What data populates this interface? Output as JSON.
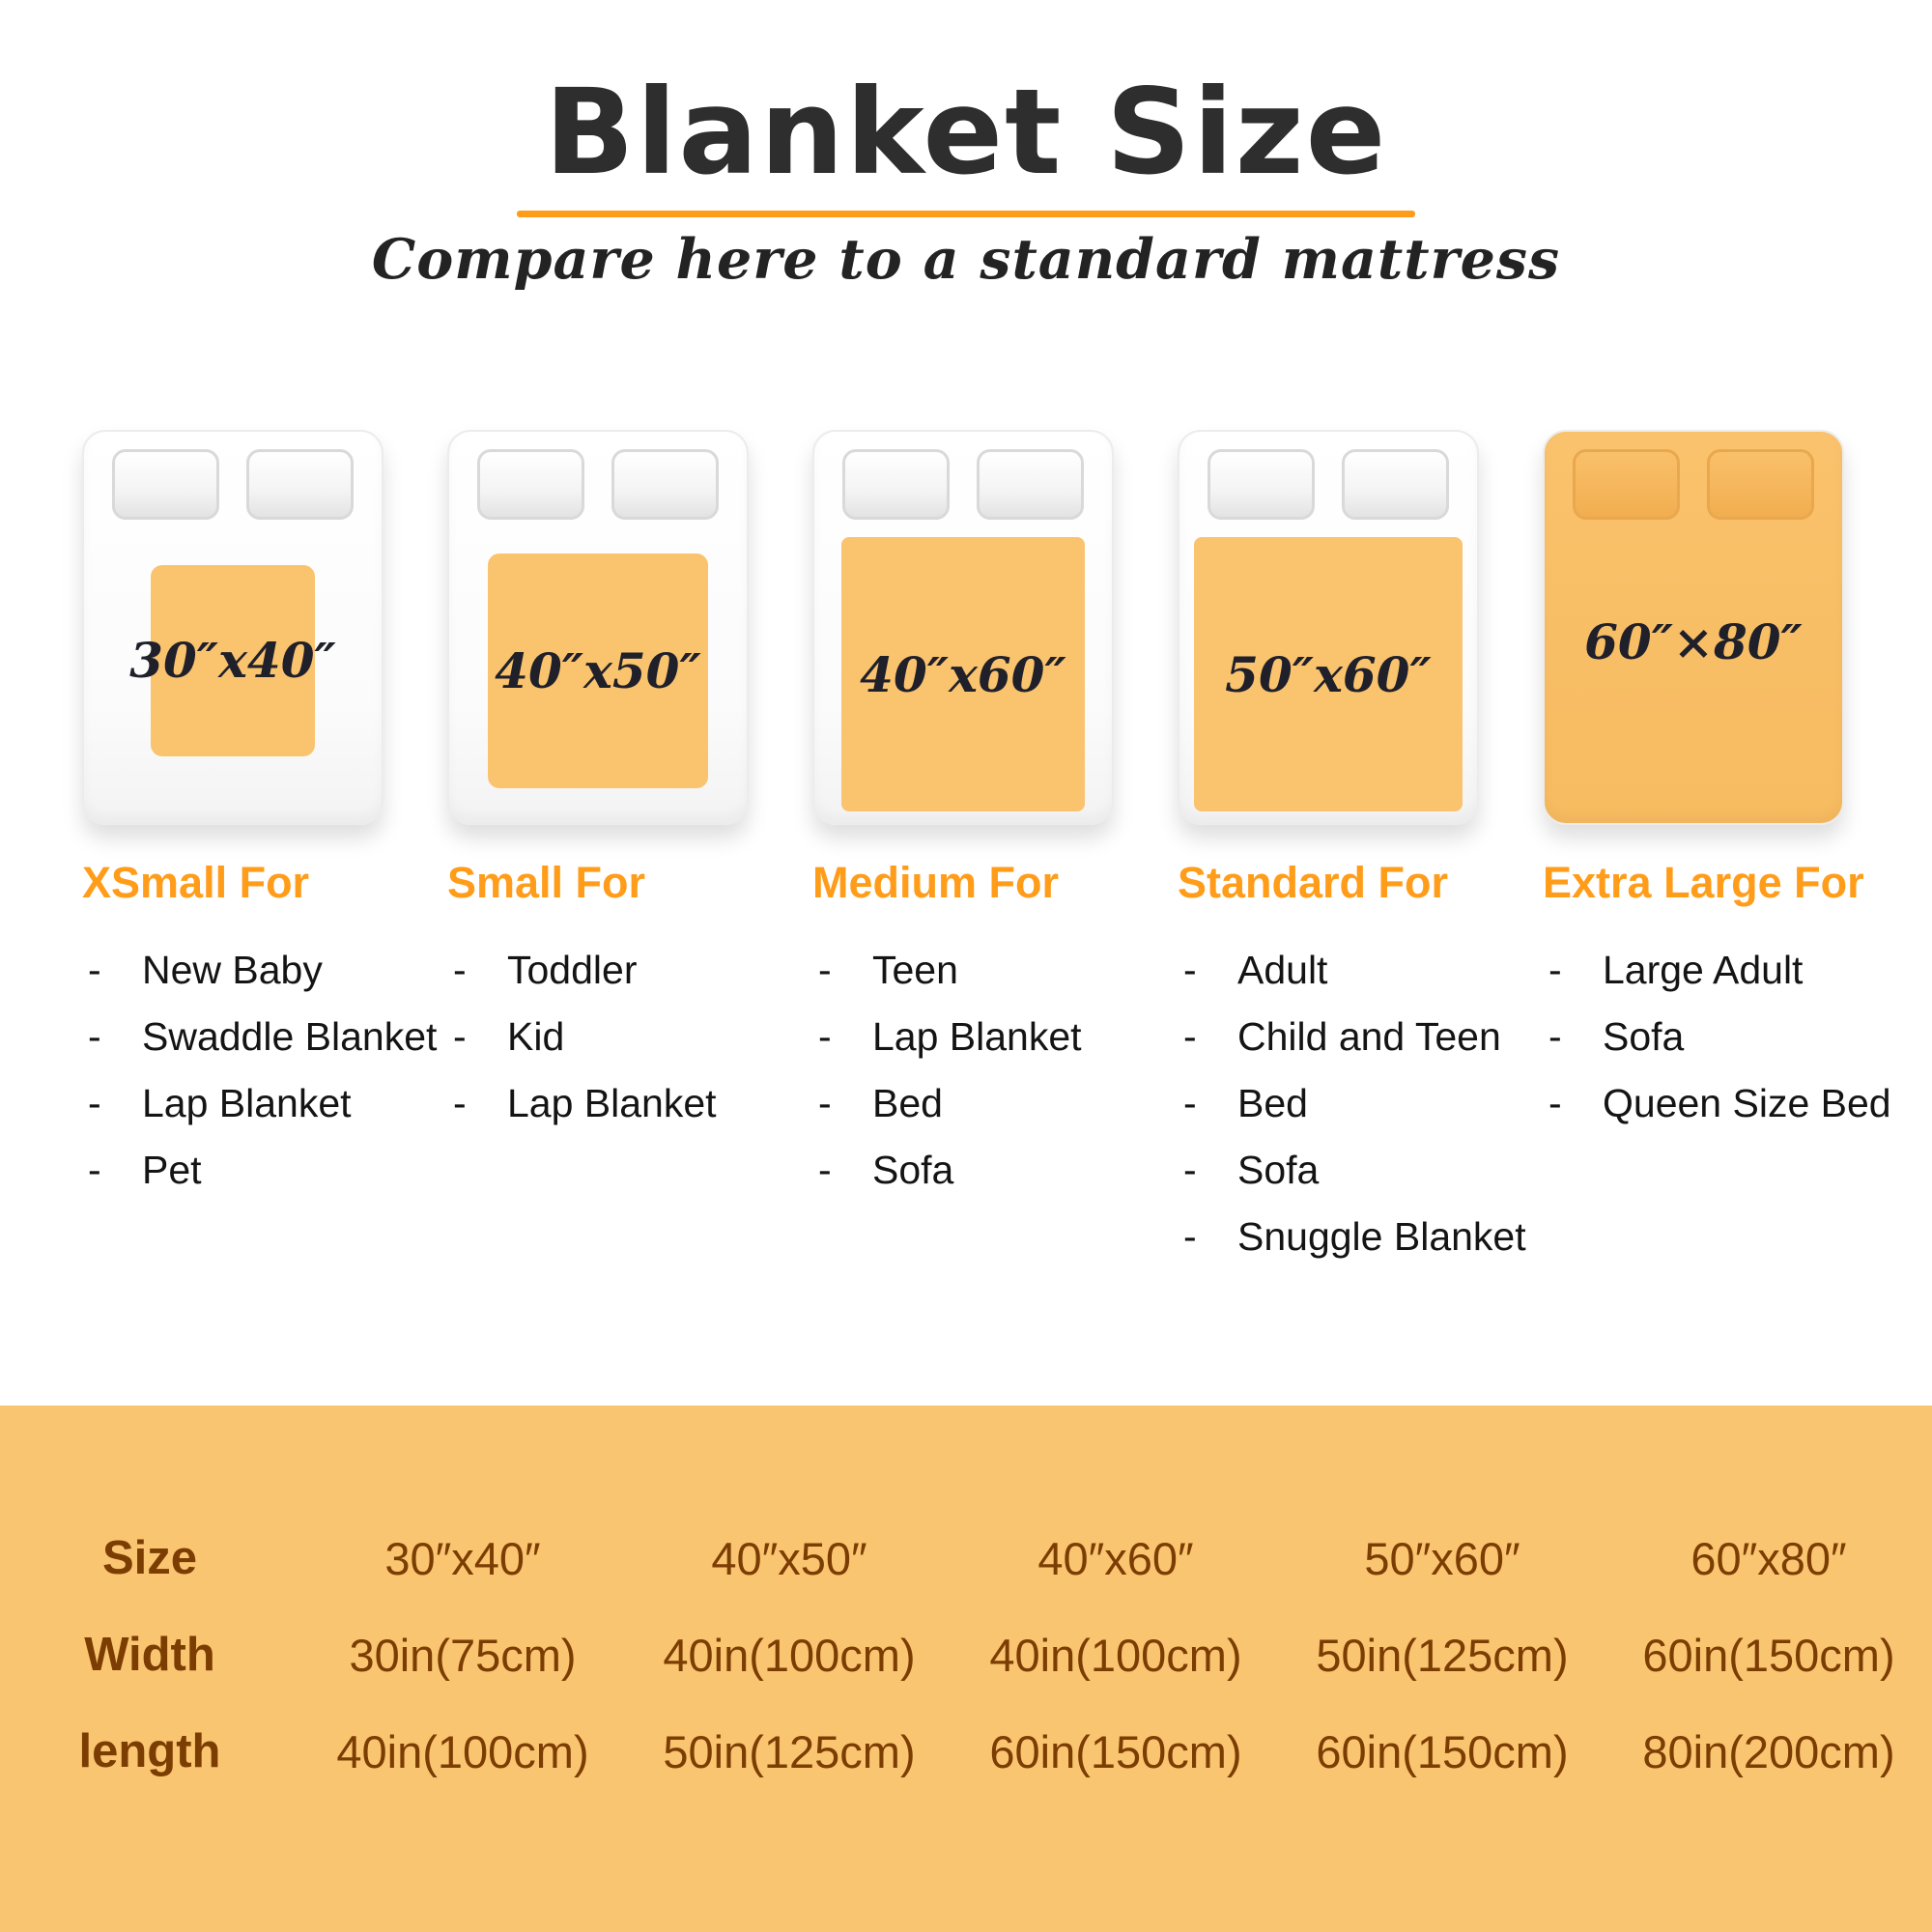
{
  "header": {
    "title": "Blanket Size",
    "subtitle": "Compare here to a standard mattress"
  },
  "colors": {
    "accent_orange": "#FF9D1B",
    "blanket_orange": "#FAC36E",
    "table_background": "#FAC571",
    "table_text": "#7B3D02",
    "title_text": "#2E2E2E"
  },
  "sizes": [
    {
      "label": "30″x40″",
      "category": "XSmall For",
      "items": [
        "New Baby",
        "Swaddle Blanket",
        "Lap Blanket",
        "Pet"
      ]
    },
    {
      "label": "40″x50″",
      "category": "Small For",
      "items": [
        "Toddler",
        "Kid",
        "Lap Blanket"
      ]
    },
    {
      "label": "40″x60″",
      "category": "Medium For",
      "items": [
        "Teen",
        "Lap Blanket",
        "Bed",
        "Sofa"
      ]
    },
    {
      "label": "50″x60″",
      "category": "Standard For",
      "items": [
        "Adult",
        "Child and Teen",
        "Bed",
        "Sofa",
        "Snuggle Blanket"
      ]
    },
    {
      "label": "60″×80″",
      "category": "Extra Large For",
      "items": [
        "Large Adult",
        "Sofa",
        "Queen Size Bed"
      ]
    }
  ],
  "table": {
    "rows": [
      {
        "label": "Size",
        "values": [
          "30″x40″",
          "40″x50″",
          "40″x60″",
          "50″x60″",
          "60″x80″"
        ]
      },
      {
        "label": "Width",
        "values": [
          "30in(75cm)",
          "40in(100cm)",
          "40in(100cm)",
          "50in(125cm)",
          "60in(150cm)"
        ]
      },
      {
        "label": "length",
        "values": [
          "40in(100cm)",
          "50in(125cm)",
          "60in(150cm)",
          "60in(150cm)",
          "80in(200cm)"
        ]
      }
    ]
  }
}
